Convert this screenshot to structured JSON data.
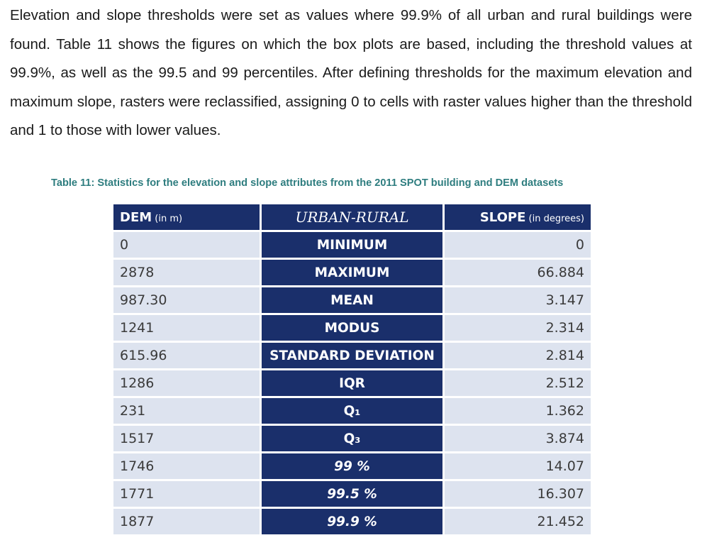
{
  "paragraph": "Elevation and slope thresholds were set as values where 99.9% of all urban and rural buildings were found. Table 11 shows the figures on which the box plots are based, including the threshold values at 99.9%, as well as the 99.5 and 99 percentiles.  After defining thresholds for the maximum elevation and maximum slope, rasters were reclassified, assigning 0 to cells with raster values higher than the threshold and 1 to those with lower values.",
  "caption": "Table 11: Statistics for the elevation and slope attributes from the 2011 SPOT building and DEM datasets",
  "table": {
    "header": {
      "dem_label": "DEM",
      "dem_unit": " (in m)",
      "middle_label": "URBAN-RURAL",
      "slope_label": "SLOPE",
      "slope_unit": " (in degrees)"
    },
    "rows": [
      {
        "dem": "0",
        "stat": "MINIMUM",
        "slope": "0",
        "italic": false
      },
      {
        "dem": "2878",
        "stat": "MAXIMUM",
        "slope": "66.884",
        "italic": false
      },
      {
        "dem": "987.30",
        "stat": "MEAN",
        "slope": "3.147",
        "italic": false
      },
      {
        "dem": "1241",
        "stat": "MODUS",
        "slope": "2.314",
        "italic": false
      },
      {
        "dem": "615.96",
        "stat": "STANDARD DEVIATION",
        "slope": "2.814",
        "italic": false
      },
      {
        "dem": "1286",
        "stat": "IQR",
        "slope": "2.512",
        "italic": false
      },
      {
        "dem": "231",
        "stat": "Q₁",
        "slope": "1.362",
        "italic": false
      },
      {
        "dem": "1517",
        "stat": "Q₃",
        "slope": "3.874",
        "italic": false
      },
      {
        "dem": "1746",
        "stat": "99 %",
        "slope": "14.07",
        "italic": true
      },
      {
        "dem": "1771",
        "stat": "99.5 %",
        "slope": "16.307",
        "italic": true
      },
      {
        "dem": "1877",
        "stat": "99.9 %",
        "slope": "21.452",
        "italic": true
      }
    ]
  }
}
